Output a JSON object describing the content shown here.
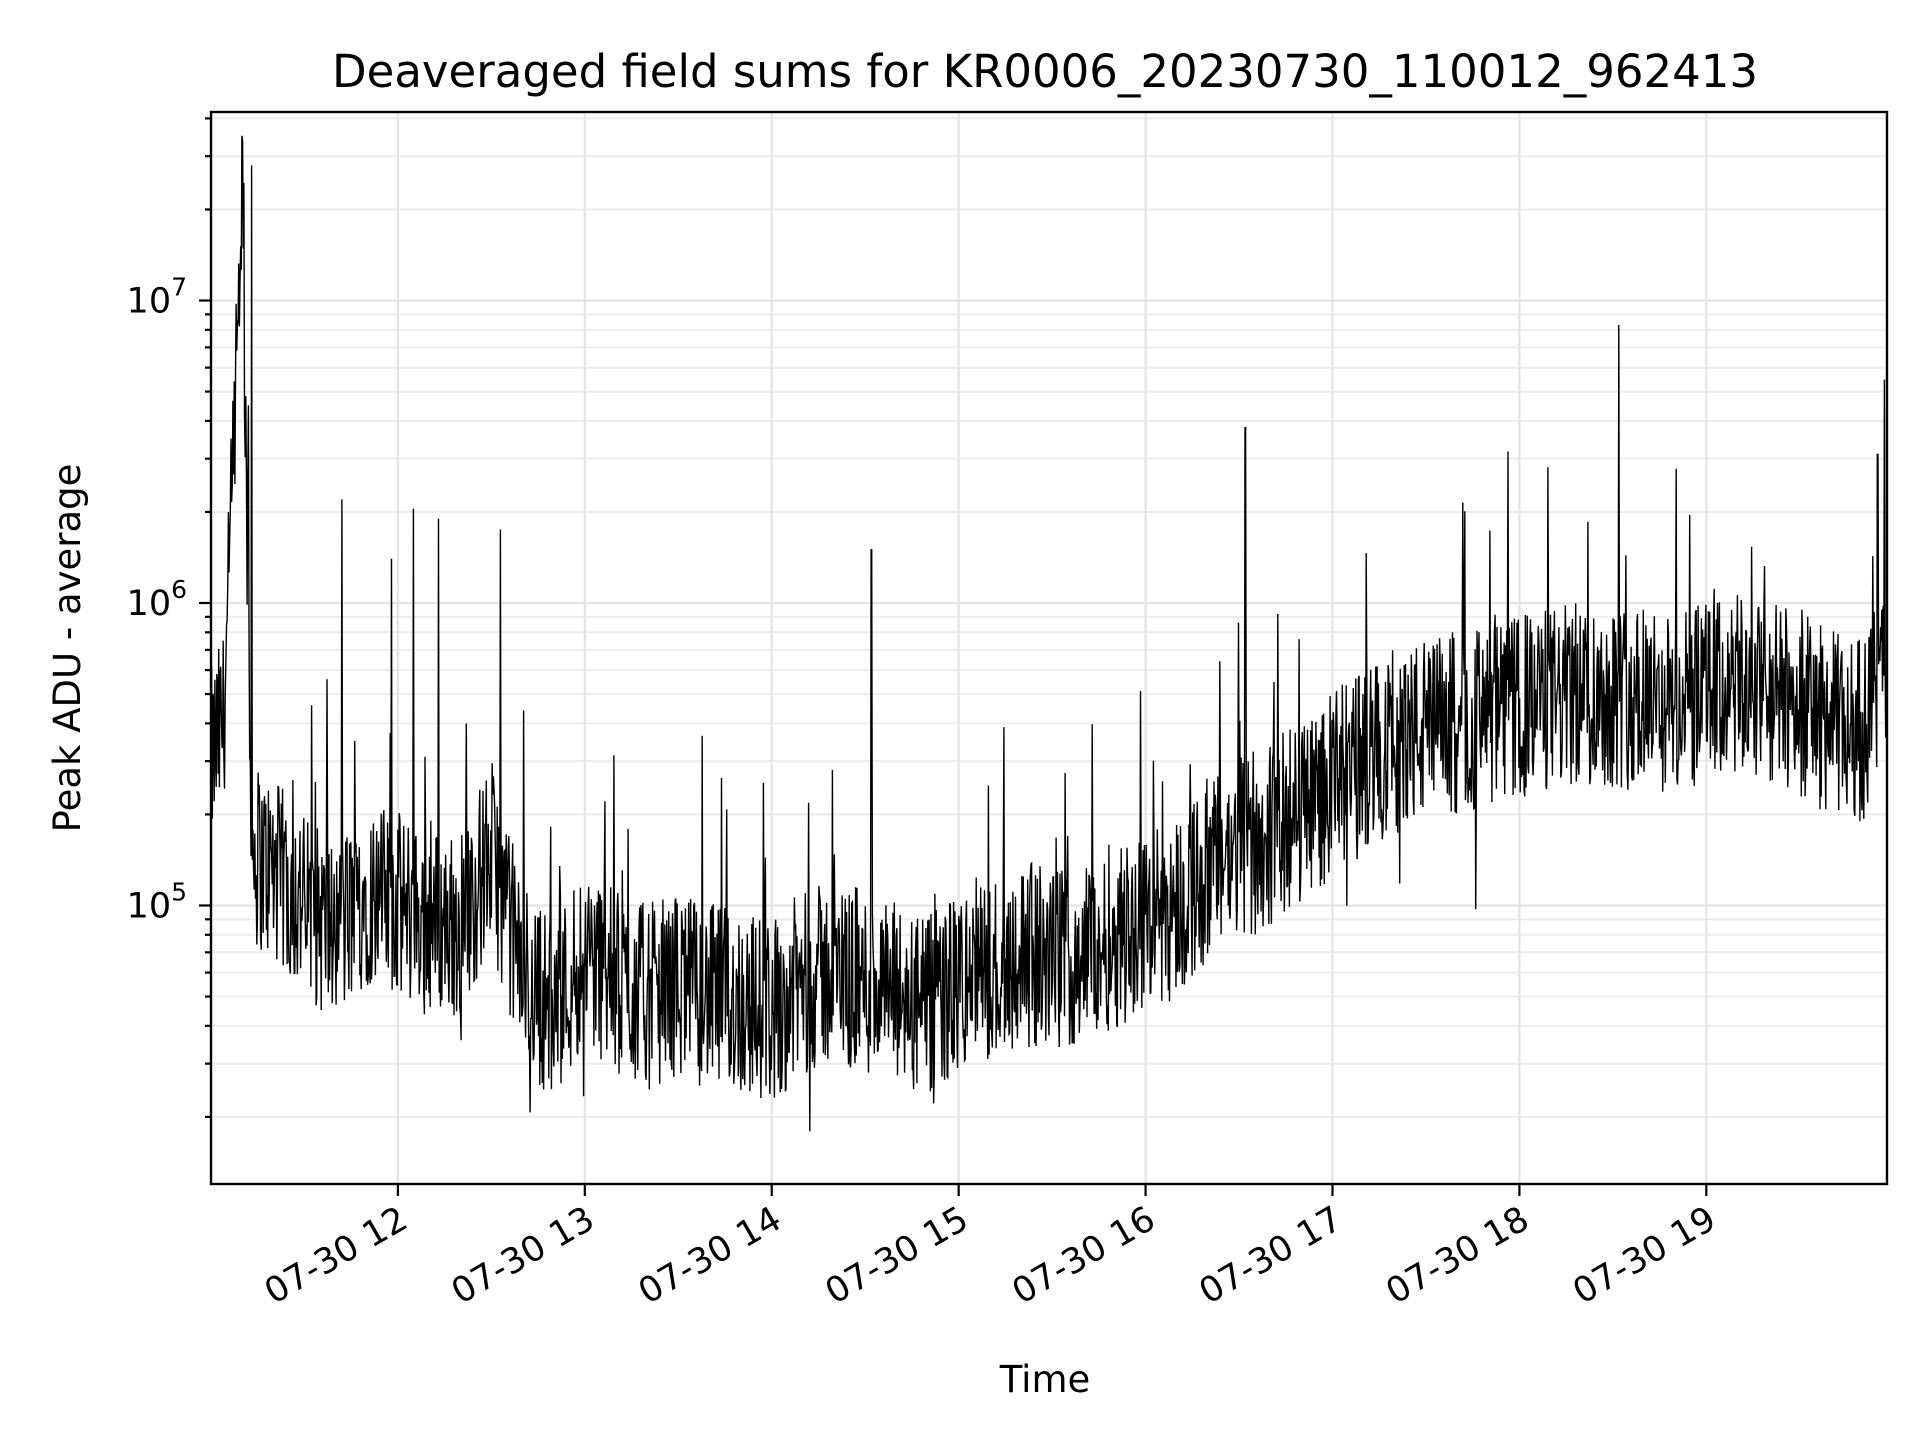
{
  "chart_data": {
    "type": "line",
    "title": "Deaveraged field sums for KR0006_20230730_110012_962413",
    "xlabel": "Time",
    "ylabel": "Peak ADU - average",
    "yscale": "log",
    "grid": "on (major and minor)",
    "legend": "none",
    "line_color": "#000000",
    "grid_color": "#e4e4e4",
    "xlim": [
      "2023-07-30T11:00:00",
      "2023-07-30T19:58:00"
    ],
    "ylim": [
      12000,
      42000000
    ],
    "x_tick_labels": [
      {
        "time": "2023-07-30T12:00:00",
        "label": "07-30 12"
      },
      {
        "time": "2023-07-30T13:00:00",
        "label": "07-30 13"
      },
      {
        "time": "2023-07-30T14:00:00",
        "label": "07-30 14"
      },
      {
        "time": "2023-07-30T15:00:00",
        "label": "07-30 15"
      },
      {
        "time": "2023-07-30T16:00:00",
        "label": "07-30 16"
      },
      {
        "time": "2023-07-30T17:00:00",
        "label": "07-30 17"
      },
      {
        "time": "2023-07-30T18:00:00",
        "label": "07-30 18"
      },
      {
        "time": "2023-07-30T19:00:00",
        "label": "07-30 19"
      }
    ],
    "y_tick_labels": [
      {
        "value": 100000,
        "base": "10",
        "exponent": "5"
      },
      {
        "value": 1000000,
        "base": "10",
        "exponent": "6"
      },
      {
        "value": 10000000,
        "base": "10",
        "exponent": "7"
      }
    ],
    "series": [
      {
        "x": [
          "2023-07-30T11:00:00",
          "2023-07-30T11:04:00",
          "2023-07-30T11:08:00",
          "2023-07-30T11:10:00",
          "2023-07-30T11:13:00",
          "2023-07-30T11:20:00",
          "2023-07-30T11:30:00",
          "2023-07-30T11:40:00",
          "2023-07-30T11:50:00",
          "2023-07-30T12:00:00",
          "2023-07-30T12:10:00",
          "2023-07-30T12:20:00",
          "2023-07-30T12:30:00",
          "2023-07-30T12:40:00",
          "2023-07-30T12:50:00",
          "2023-07-30T13:00:00",
          "2023-07-30T13:10:00",
          "2023-07-30T13:20:00",
          "2023-07-30T13:30:00",
          "2023-07-30T13:40:00",
          "2023-07-30T13:50:00",
          "2023-07-30T14:00:00",
          "2023-07-30T14:10:00",
          "2023-07-30T14:20:00",
          "2023-07-30T14:30:00",
          "2023-07-30T14:40:00",
          "2023-07-30T14:50:00",
          "2023-07-30T15:00:00",
          "2023-07-30T15:10:00",
          "2023-07-30T15:20:00",
          "2023-07-30T15:30:00",
          "2023-07-30T15:40:00",
          "2023-07-30T15:50:00",
          "2023-07-30T16:00:00",
          "2023-07-30T16:10:00",
          "2023-07-30T16:20:00",
          "2023-07-30T16:30:00",
          "2023-07-30T16:40:00",
          "2023-07-30T16:50:00",
          "2023-07-30T17:00:00",
          "2023-07-30T17:10:00",
          "2023-07-30T17:20:00",
          "2023-07-30T17:30:00",
          "2023-07-30T17:40:00",
          "2023-07-30T17:50:00",
          "2023-07-30T18:00:00",
          "2023-07-30T18:10:00",
          "2023-07-30T18:20:00",
          "2023-07-30T18:30:00",
          "2023-07-30T18:40:00",
          "2023-07-30T18:50:00",
          "2023-07-30T19:00:00",
          "2023-07-30T19:10:00",
          "2023-07-30T19:20:00",
          "2023-07-30T19:30:00",
          "2023-07-30T19:40:00",
          "2023-07-30T19:50:00",
          "2023-07-30T19:58:00"
        ],
        "y": [
          300000,
          400000,
          4500000,
          28000000,
          150000,
          130000,
          100000,
          80000,
          110000,
          100000,
          90000,
          85000,
          150000,
          60000,
          45000,
          70000,
          55000,
          50000,
          55000,
          50000,
          48000,
          45000,
          55000,
          60000,
          55000,
          50000,
          45000,
          55000,
          60000,
          70000,
          65000,
          70000,
          80000,
          90000,
          100000,
          130000,
          150000,
          170000,
          210000,
          250000,
          300000,
          350000,
          380000,
          400000,
          420000,
          450000,
          480000,
          500000,
          500000,
          480000,
          450000,
          500000,
          520000,
          500000,
          470000,
          400000,
          380000,
          600000
        ]
      }
    ],
    "spikes": [
      {
        "x": "2023-07-30T11:13:00",
        "y": 28000000
      },
      {
        "x": "2023-07-30T11:12:00",
        "y": 4500000
      },
      {
        "x": "2023-07-30T11:42:00",
        "y": 2200000
      },
      {
        "x": "2023-07-30T11:58:00",
        "y": 1400000
      },
      {
        "x": "2023-07-30T12:05:00",
        "y": 2050000
      },
      {
        "x": "2023-07-30T12:13:00",
        "y": 1900000
      },
      {
        "x": "2023-07-30T12:33:00",
        "y": 1750000
      },
      {
        "x": "2023-07-30T14:32:00",
        "y": 1500000
      },
      {
        "x": "2023-07-30T16:32:00",
        "y": 3800000
      },
      {
        "x": "2023-07-30T18:32:00",
        "y": 8300000
      },
      {
        "x": "2023-07-30T19:55:00",
        "y": 3100000
      }
    ]
  }
}
